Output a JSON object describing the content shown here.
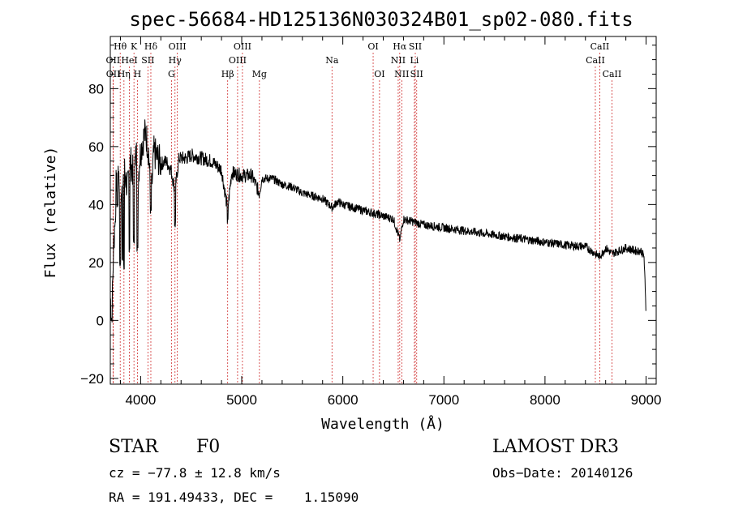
{
  "chart_data": {
    "type": "line",
    "title": "spec-56684-HD125136N030324B01_sp02-080.fits",
    "xlabel": "Wavelength (Å)",
    "ylabel": "Flux (relative)",
    "xlim": [
      3700,
      9100
    ],
    "ylim": [
      -22,
      98
    ],
    "x_ticks": [
      4000,
      5000,
      6000,
      7000,
      8000,
      9000
    ],
    "y_ticks": [
      -20,
      0,
      20,
      40,
      60,
      80
    ],
    "series": [
      {
        "name": "flux",
        "anchors": [
          [
            3700,
            8
          ],
          [
            3715,
            0
          ],
          [
            3730,
            22
          ],
          [
            3750,
            40
          ],
          [
            3770,
            58
          ],
          [
            3790,
            48
          ],
          [
            3810,
            42
          ],
          [
            3840,
            52
          ],
          [
            3870,
            45
          ],
          [
            3900,
            55
          ],
          [
            3930,
            50
          ],
          [
            3960,
            58
          ],
          [
            3970,
            45
          ],
          [
            3990,
            56
          ],
          [
            4020,
            62
          ],
          [
            4050,
            65
          ],
          [
            4080,
            58
          ],
          [
            4101,
            40
          ],
          [
            4130,
            58
          ],
          [
            4170,
            56
          ],
          [
            4200,
            54
          ],
          [
            4250,
            55
          ],
          [
            4300,
            52
          ],
          [
            4340,
            45
          ],
          [
            4380,
            56
          ],
          [
            4450,
            56
          ],
          [
            4500,
            57
          ],
          [
            4600,
            56
          ],
          [
            4700,
            55
          ],
          [
            4800,
            52
          ],
          [
            4861,
            38
          ],
          [
            4900,
            51
          ],
          [
            5000,
            50
          ],
          [
            5100,
            50
          ],
          [
            5173,
            44
          ],
          [
            5200,
            49
          ],
          [
            5300,
            49
          ],
          [
            5400,
            47
          ],
          [
            5500,
            46
          ],
          [
            5600,
            44
          ],
          [
            5700,
            43
          ],
          [
            5800,
            42
          ],
          [
            5893,
            39
          ],
          [
            5950,
            41
          ],
          [
            6000,
            40
          ],
          [
            6100,
            39
          ],
          [
            6200,
            38
          ],
          [
            6300,
            37
          ],
          [
            6400,
            36
          ],
          [
            6500,
            35
          ],
          [
            6563,
            28
          ],
          [
            6600,
            35
          ],
          [
            6700,
            34
          ],
          [
            6800,
            33
          ],
          [
            7000,
            32
          ],
          [
            7200,
            31
          ],
          [
            7400,
            30
          ],
          [
            7600,
            29
          ],
          [
            7800,
            28
          ],
          [
            8000,
            27
          ],
          [
            8200,
            26
          ],
          [
            8400,
            25.5
          ],
          [
            8498,
            23
          ],
          [
            8542,
            22
          ],
          [
            8600,
            25
          ],
          [
            8662,
            23
          ],
          [
            8800,
            25
          ],
          [
            8900,
            24
          ],
          [
            8950,
            24
          ],
          [
            8980,
            22
          ],
          [
            9000,
            2
          ]
        ],
        "dips": [
          [
            3750,
            35
          ],
          [
            3770,
            40
          ],
          [
            3798,
            20
          ],
          [
            3820,
            22
          ],
          [
            3835,
            18
          ],
          [
            3889,
            25
          ],
          [
            3933,
            28
          ],
          [
            3968,
            25
          ],
          [
            4101,
            38
          ],
          [
            4340,
            33
          ],
          [
            4861,
            34
          ],
          [
            6563,
            30
          ]
        ]
      }
    ],
    "spectral_lines": [
      {
        "label": "Hθ",
        "wavelength": 3798,
        "row": 1
      },
      {
        "label": "K",
        "wavelength": 3934,
        "row": 1
      },
      {
        "label": "Hδ",
        "wavelength": 4101,
        "row": 1
      },
      {
        "label": "OIII",
        "wavelength": 4363,
        "row": 1
      },
      {
        "label": "OIII",
        "wavelength": 5007,
        "row": 1
      },
      {
        "label": "OI",
        "wavelength": 6300,
        "row": 1
      },
      {
        "label": "Hα",
        "wavelength": 6563,
        "row": 1
      },
      {
        "label": "SII",
        "wavelength": 6717,
        "row": 1
      },
      {
        "label": "CaII",
        "wavelength": 8542,
        "row": 1
      },
      {
        "label": "OII",
        "wavelength": 3727,
        "row": 2
      },
      {
        "label": "HeI",
        "wavelength": 3889,
        "row": 2
      },
      {
        "label": "SII",
        "wavelength": 4072,
        "row": 2
      },
      {
        "label": "Hγ",
        "wavelength": 4340,
        "row": 2
      },
      {
        "label": "OIII",
        "wavelength": 4959,
        "row": 2
      },
      {
        "label": "Na",
        "wavelength": 5893,
        "row": 2
      },
      {
        "label": "NII",
        "wavelength": 6548,
        "row": 2
      },
      {
        "label": "Li",
        "wavelength": 6708,
        "row": 2
      },
      {
        "label": "CaII",
        "wavelength": 8498,
        "row": 2
      },
      {
        "label": "OII",
        "wavelength": 3729,
        "row": 3
      },
      {
        "label": "Hη",
        "wavelength": 3835,
        "row": 3
      },
      {
        "label": "H",
        "wavelength": 3968,
        "row": 3
      },
      {
        "label": "G",
        "wavelength": 4305,
        "row": 3
      },
      {
        "label": "Hβ",
        "wavelength": 4861,
        "row": 3
      },
      {
        "label": "Mg",
        "wavelength": 5175,
        "row": 3
      },
      {
        "label": "OI",
        "wavelength": 6363,
        "row": 3
      },
      {
        "label": "NII",
        "wavelength": 6583,
        "row": 3
      },
      {
        "label": "SII",
        "wavelength": 6731,
        "row": 3
      },
      {
        "label": "CaII",
        "wavelength": 8662,
        "row": 3
      }
    ]
  },
  "info": {
    "object_class": "STAR",
    "subclass": "F0",
    "survey": "LAMOST DR3",
    "redshift": "cz = −77.8 ± 12.8 km/s",
    "obs_date": "Obs−Date: 20140126",
    "coords": "RA = 191.49433, DEC =    1.15090"
  }
}
